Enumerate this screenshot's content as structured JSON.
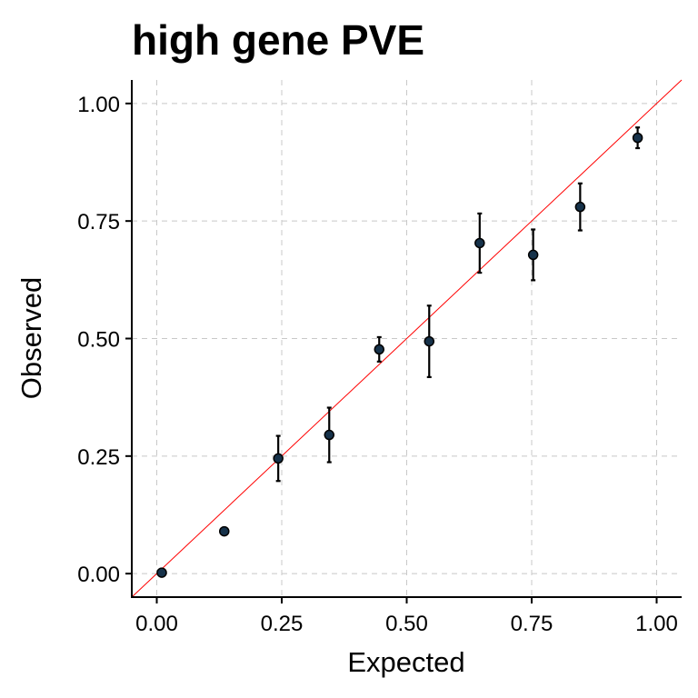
{
  "chart_data": {
    "type": "scatter",
    "title": "high gene PVE",
    "xlabel": "Expected",
    "ylabel": "Observed",
    "xlim": [
      -0.05,
      1.05
    ],
    "ylim": [
      -0.05,
      1.05
    ],
    "xticks": [
      0.0,
      0.25,
      0.5,
      0.75,
      1.0
    ],
    "yticks": [
      0.0,
      0.25,
      0.5,
      0.75,
      1.0
    ],
    "xtick_labels": [
      "0.00",
      "0.25",
      "0.50",
      "0.75",
      "1.00"
    ],
    "ytick_labels": [
      "0.00",
      "0.25",
      "0.50",
      "0.75",
      "1.00"
    ],
    "grid": true,
    "reference_line": {
      "slope": 1,
      "intercept": 0,
      "color": "#ff0000"
    },
    "point_color": "#16324a",
    "points": [
      {
        "x": 0.01,
        "y": 0.002,
        "ymin": 0.002,
        "ymax": 0.002
      },
      {
        "x": 0.135,
        "y": 0.09,
        "ymin": 0.09,
        "ymax": 0.09
      },
      {
        "x": 0.243,
        "y": 0.245,
        "ymin": 0.197,
        "ymax": 0.293
      },
      {
        "x": 0.345,
        "y": 0.295,
        "ymin": 0.237,
        "ymax": 0.353
      },
      {
        "x": 0.445,
        "y": 0.477,
        "ymin": 0.451,
        "ymax": 0.503
      },
      {
        "x": 0.545,
        "y": 0.494,
        "ymin": 0.418,
        "ymax": 0.57
      },
      {
        "x": 0.646,
        "y": 0.703,
        "ymin": 0.64,
        "ymax": 0.766
      },
      {
        "x": 0.753,
        "y": 0.678,
        "ymin": 0.624,
        "ymax": 0.732
      },
      {
        "x": 0.847,
        "y": 0.78,
        "ymin": 0.73,
        "ymax": 0.83
      },
      {
        "x": 0.962,
        "y": 0.927,
        "ymin": 0.905,
        "ymax": 0.949
      }
    ]
  }
}
